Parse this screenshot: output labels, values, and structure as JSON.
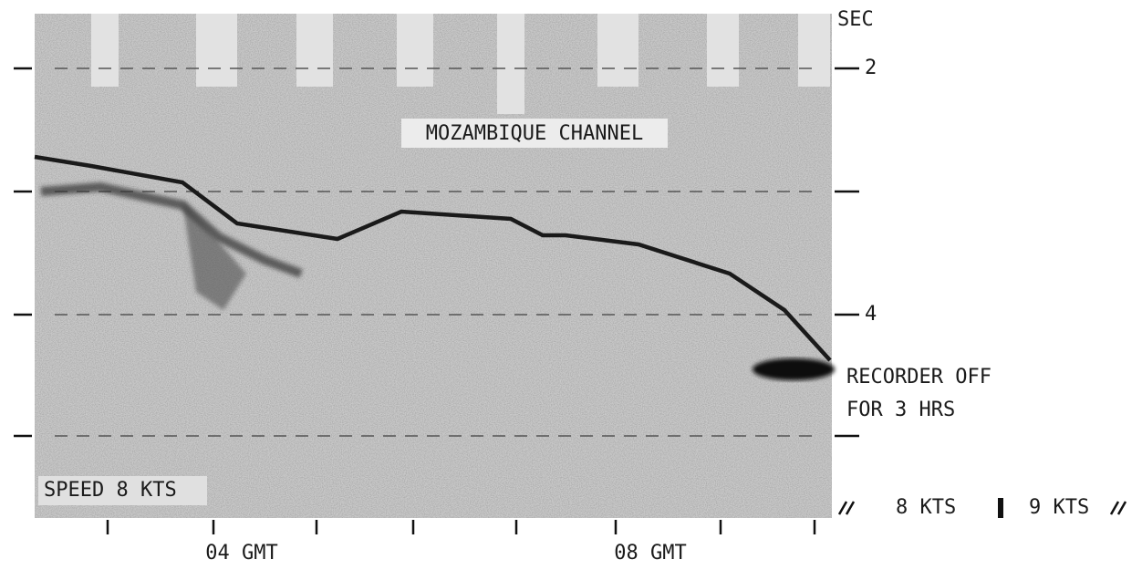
{
  "axis": {
    "unit": "SEC",
    "labels": [
      "2",
      "4"
    ]
  },
  "title": "MOZAMBIQUE CHANNEL",
  "notes": {
    "recorder": [
      "RECORDER OFF",
      "FOR 3 HRS"
    ],
    "speed": "SPEED 8 KTS"
  },
  "speeds": [
    "8 KTS",
    "9 KTS"
  ],
  "times": [
    "04 GMT",
    "08 GMT"
  ]
}
